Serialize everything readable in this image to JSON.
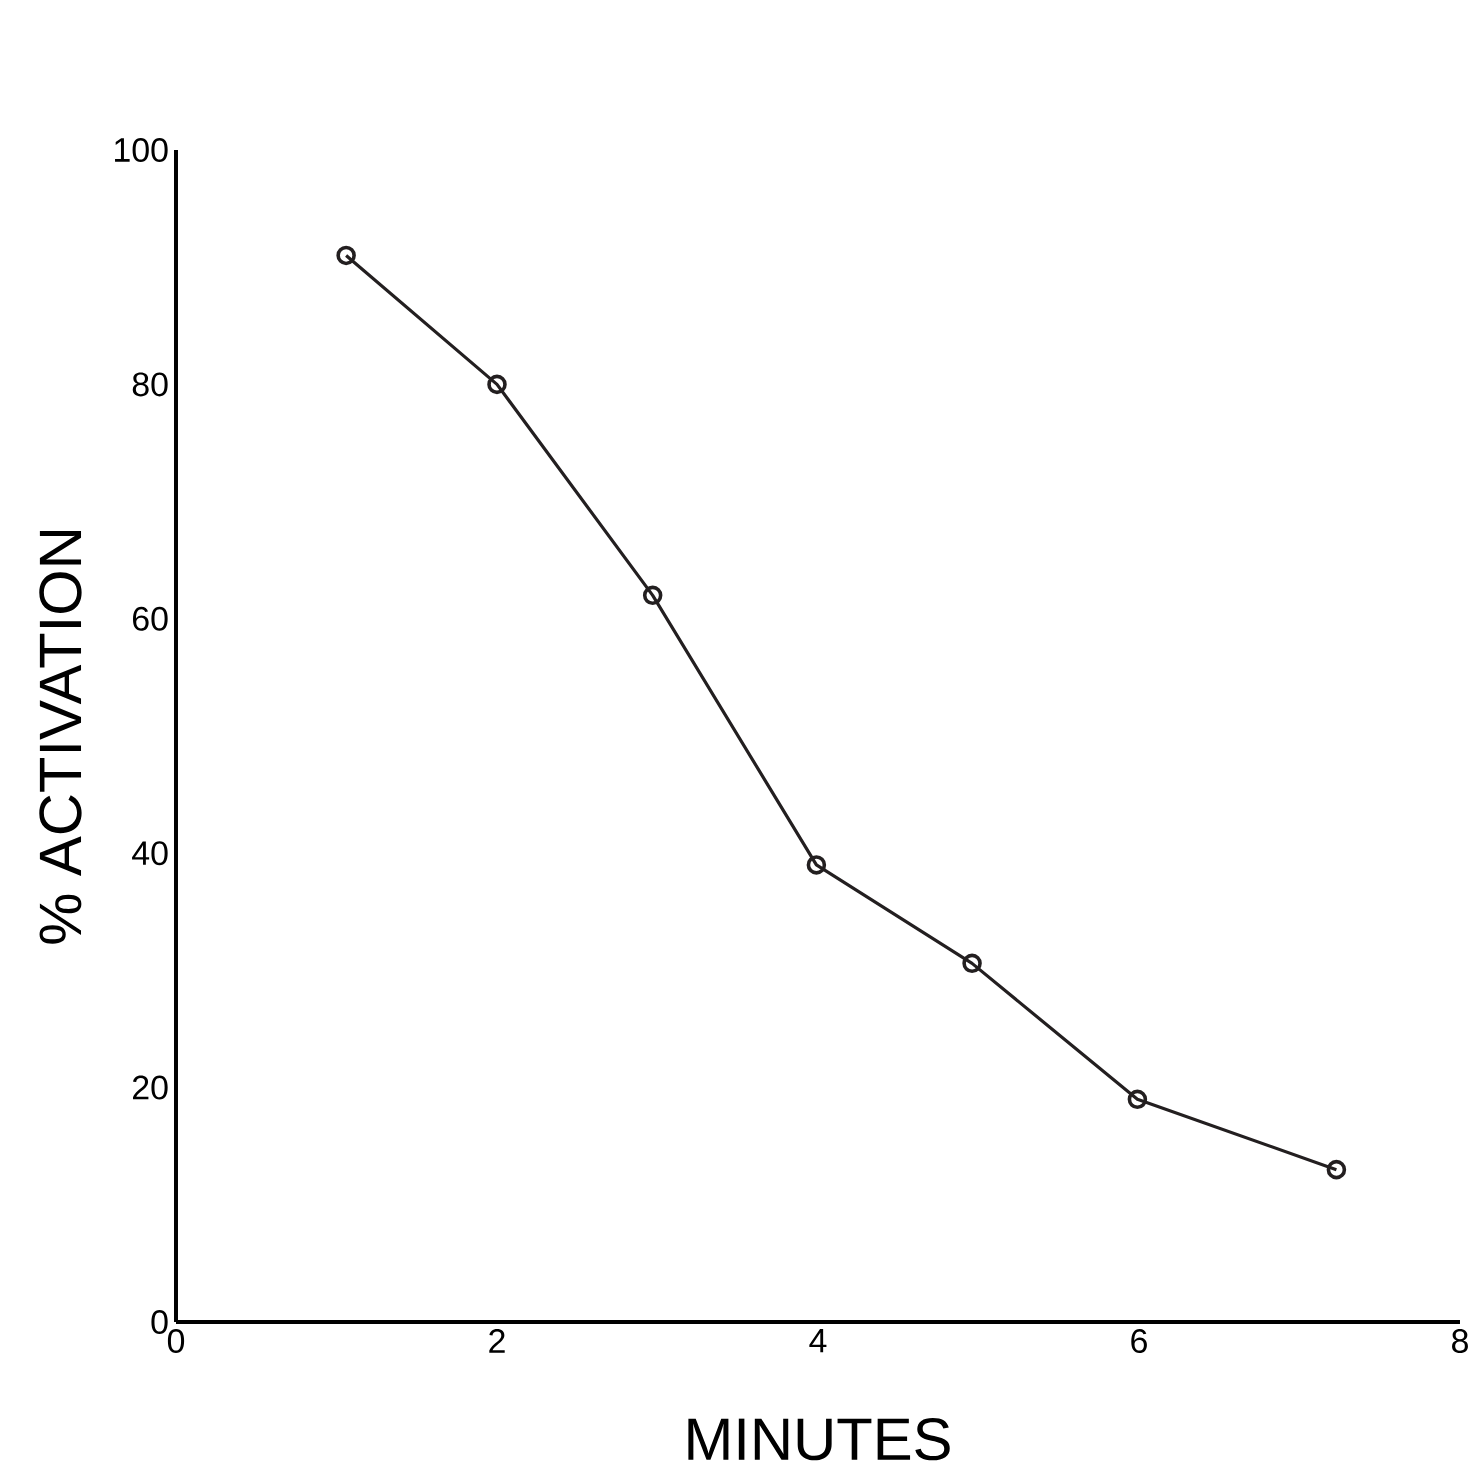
{
  "chart_data": {
    "type": "line",
    "xlabel": "MINUTES",
    "ylabel": "% ACTIVATION",
    "x": [
      1.06,
      2,
      2.97,
      3.99,
      4.96,
      5.99,
      7.23
    ],
    "values": [
      91,
      80,
      62,
      39,
      30.6,
      19,
      13
    ],
    "color": "#231f20",
    "marker": "circle",
    "line_style": "solid",
    "xlim": [
      0,
      8
    ],
    "ylim": [
      0,
      100
    ],
    "xticks": [
      0,
      2,
      4,
      6,
      8
    ],
    "yticks": [
      0,
      20,
      40,
      60,
      80,
      100
    ],
    "grid": false
  }
}
